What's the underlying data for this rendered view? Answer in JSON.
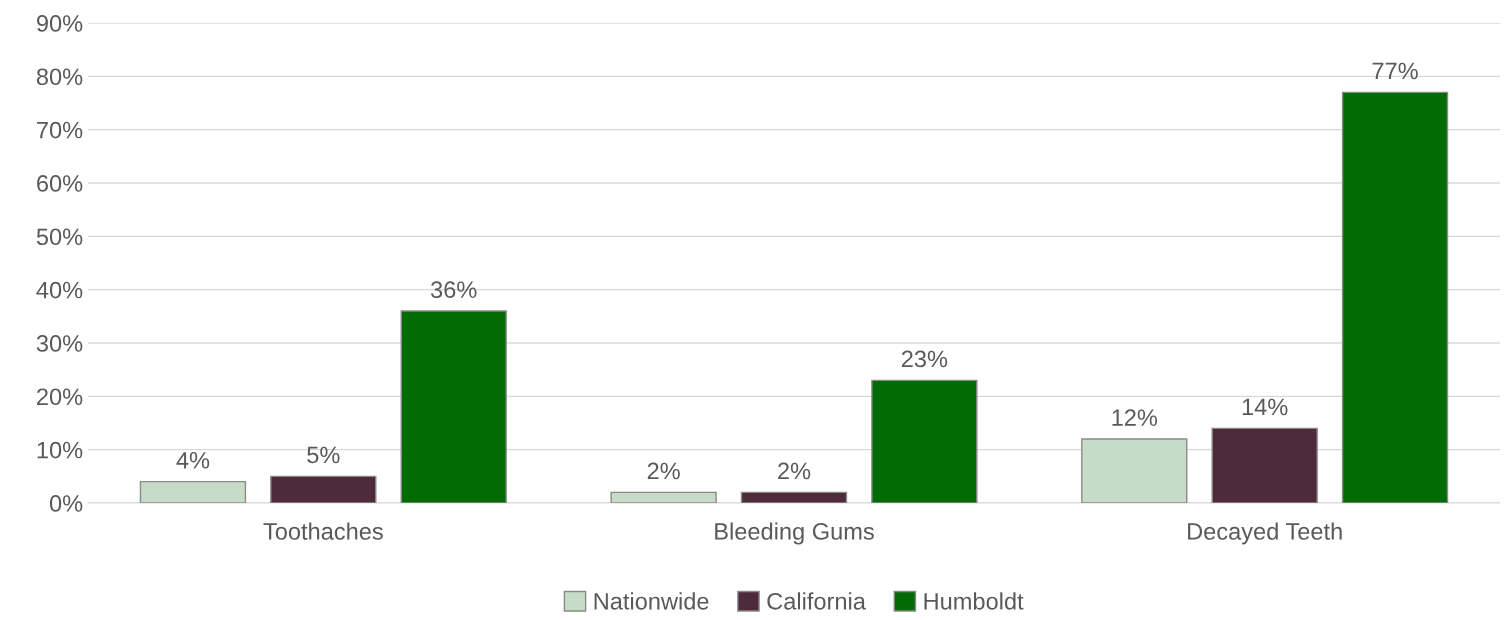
{
  "chart_data": {
    "type": "bar",
    "categories": [
      "Toothaches",
      "Bleeding Gums",
      "Decayed Teeth"
    ],
    "series": [
      {
        "name": "Nationwide",
        "color": "#c6dcc6",
        "values": [
          4,
          2,
          12
        ],
        "value_labels": [
          "4%",
          "2%",
          "12%"
        ]
      },
      {
        "name": "California",
        "color": "#4e2a3a",
        "values": [
          5,
          2,
          14
        ],
        "value_labels": [
          "5%",
          "2%",
          "14%"
        ]
      },
      {
        "name": "Humboldt",
        "color": "#036b03",
        "values": [
          36,
          23,
          77
        ],
        "value_labels": [
          "36%",
          "23%",
          "77%"
        ]
      }
    ],
    "ylim": [
      0,
      90
    ],
    "yticks": [
      {
        "value": 0,
        "label": "0%"
      },
      {
        "value": 10,
        "label": "10%"
      },
      {
        "value": 20,
        "label": "20%"
      },
      {
        "value": 30,
        "label": "30%"
      },
      {
        "value": 40,
        "label": "40%"
      },
      {
        "value": 50,
        "label": "50%"
      },
      {
        "value": 60,
        "label": "60%"
      },
      {
        "value": 70,
        "label": "70%"
      },
      {
        "value": 80,
        "label": "80%"
      },
      {
        "value": 90,
        "label": "90%"
      }
    ],
    "grid": "y",
    "legend": "bottom"
  }
}
